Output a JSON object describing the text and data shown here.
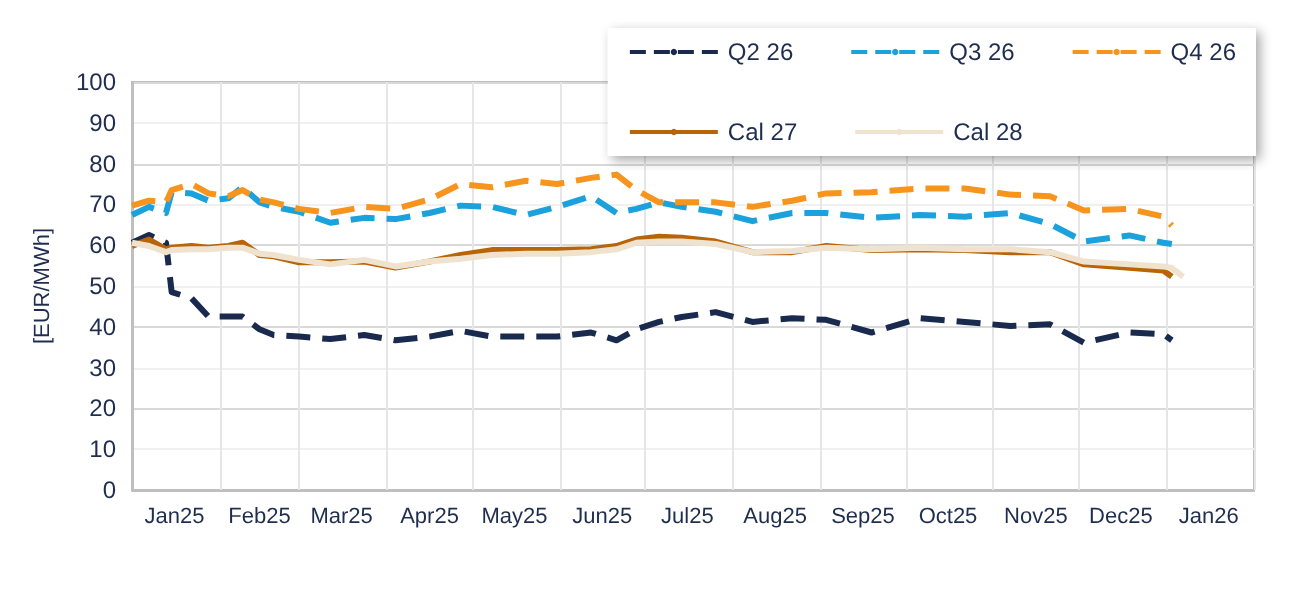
{
  "chart_data": {
    "type": "line",
    "ylabel": "[EUR/MWh]",
    "x": [
      "2025-01-01",
      "2025-01-07",
      "2025-01-13",
      "2025-01-15",
      "2025-01-22",
      "2025-01-28",
      "2025-02-04",
      "2025-02-09",
      "2025-02-15",
      "2025-02-20",
      "2025-03-01",
      "2025-03-12",
      "2025-03-24",
      "2025-04-04",
      "2025-04-16",
      "2025-04-27",
      "2025-05-08",
      "2025-05-20",
      "2025-05-31",
      "2025-06-12",
      "2025-06-21",
      "2025-06-28",
      "2025-07-06",
      "2025-07-14",
      "2025-07-26",
      "2025-08-08",
      "2025-08-22",
      "2025-09-03",
      "2025-09-19",
      "2025-10-06",
      "2025-10-22",
      "2025-11-07",
      "2025-11-21",
      "2025-12-03",
      "2025-12-19",
      "2025-12-31",
      "2026-01-03",
      "2026-01-07"
    ],
    "series": [
      {
        "name": "Q2 26",
        "color": "#1a2a4f",
        "line_style": "dashed",
        "values": [
          60.6,
          62.5,
          60.6,
          48.5,
          47,
          42.5,
          42.5,
          42.5,
          39.4,
          38,
          37.6,
          37,
          38,
          36.7,
          37.6,
          39,
          37.6,
          37.6,
          37.6,
          38.6,
          36.7,
          39.4,
          41.2,
          42.4,
          43.6,
          41.2,
          42.1,
          41.7,
          38.6,
          42.1,
          41.2,
          40.2,
          40.6,
          36.1,
          38.6,
          38.2,
          36.7,
          null
        ]
      },
      {
        "name": "Q3 26",
        "color": "#1ba1dc",
        "line_style": "dashed",
        "values": [
          67.4,
          69.4,
          67.9,
          73,
          72.7,
          70.9,
          71.5,
          74.2,
          70.5,
          69.4,
          68.2,
          65.5,
          66.7,
          66.4,
          67.9,
          69.7,
          69.4,
          67.4,
          69.4,
          72,
          67.9,
          68.9,
          70.5,
          69.4,
          68.2,
          65.9,
          67.9,
          67.9,
          66.7,
          67.4,
          67,
          67.9,
          65.2,
          60.9,
          62.4,
          60.6,
          60.3,
          null
        ]
      },
      {
        "name": "Q4 26",
        "color": "#f7941d",
        "line_style": "dashed",
        "values": [
          69.7,
          70.9,
          70.5,
          73.5,
          75,
          72.7,
          72,
          73.5,
          71.2,
          70.5,
          68.9,
          67.9,
          69.4,
          68.9,
          71.2,
          75,
          74.2,
          75.8,
          75,
          76.5,
          77.3,
          73.5,
          70.5,
          70.5,
          70.5,
          69.4,
          70.9,
          72.7,
          73,
          73.9,
          73.9,
          72.4,
          72,
          68.5,
          68.9,
          67,
          64.8,
          null
        ]
      },
      {
        "name": "Cal 27",
        "color": "#b8650a",
        "line_style": "solid",
        "values": [
          59.8,
          61.4,
          59,
          59.4,
          59.8,
          59.4,
          59.8,
          60.6,
          57.6,
          57.3,
          55.8,
          55.8,
          56,
          54.5,
          56,
          57.6,
          58.8,
          58.8,
          58.8,
          59,
          59.8,
          61.4,
          62.1,
          61.8,
          60.9,
          58.3,
          58.3,
          59.8,
          58.8,
          59,
          58.8,
          58.3,
          58.3,
          55.3,
          54.5,
          53.8,
          52.3,
          null
        ]
      },
      {
        "name": "Cal 28",
        "color": "#efe3cf",
        "line_style": "solid",
        "values": [
          60.6,
          59.8,
          58.3,
          58.8,
          59,
          59,
          59.4,
          59.4,
          57.9,
          57.6,
          56.4,
          55.3,
          56.4,
          54.8,
          56,
          56.7,
          57.6,
          57.9,
          57.9,
          58.3,
          59,
          60.6,
          60.9,
          60.9,
          60.3,
          58.3,
          58.6,
          59.4,
          59,
          59.4,
          59,
          59,
          58.3,
          56,
          55.3,
          54.8,
          54.4,
          52.3
        ]
      }
    ],
    "xlim": [
      "2025-01-01",
      "2026-02-01"
    ],
    "xticks": [
      {
        "value": "2025-01-01",
        "label": null
      },
      {
        "value": "2025-01-16",
        "label": "Jan25"
      },
      {
        "value": "2025-02-01",
        "label": null
      },
      {
        "value": "2025-02-15",
        "label": "Feb25"
      },
      {
        "value": "2025-03-01",
        "label": null
      },
      {
        "value": "2025-03-16",
        "label": "Mar25"
      },
      {
        "value": "2025-04-01",
        "label": null
      },
      {
        "value": "2025-04-16",
        "label": "Apr25"
      },
      {
        "value": "2025-05-01",
        "label": null
      },
      {
        "value": "2025-05-16",
        "label": "May25"
      },
      {
        "value": "2025-06-01",
        "label": null
      },
      {
        "value": "2025-06-16",
        "label": "Jun25"
      },
      {
        "value": "2025-07-01",
        "label": null
      },
      {
        "value": "2025-07-16",
        "label": "Jul25"
      },
      {
        "value": "2025-08-01",
        "label": null
      },
      {
        "value": "2025-08-16",
        "label": "Aug25"
      },
      {
        "value": "2025-09-01",
        "label": null
      },
      {
        "value": "2025-09-16",
        "label": "Sep25"
      },
      {
        "value": "2025-10-01",
        "label": null
      },
      {
        "value": "2025-10-16",
        "label": "Oct25"
      },
      {
        "value": "2025-11-01",
        "label": null
      },
      {
        "value": "2025-11-16",
        "label": "Nov25"
      },
      {
        "value": "2025-12-01",
        "label": null
      },
      {
        "value": "2025-12-16",
        "label": "Dec25"
      },
      {
        "value": "2026-01-01",
        "label": null
      },
      {
        "value": "2026-01-16",
        "label": "Jan26"
      },
      {
        "value": "2026-02-01",
        "label": null
      }
    ],
    "ylim": [
      0,
      100
    ],
    "yticks": [
      0,
      10,
      20,
      30,
      40,
      50,
      60,
      70,
      80,
      90,
      100
    ],
    "grid": true,
    "legend": "top right",
    "marker": "none"
  }
}
